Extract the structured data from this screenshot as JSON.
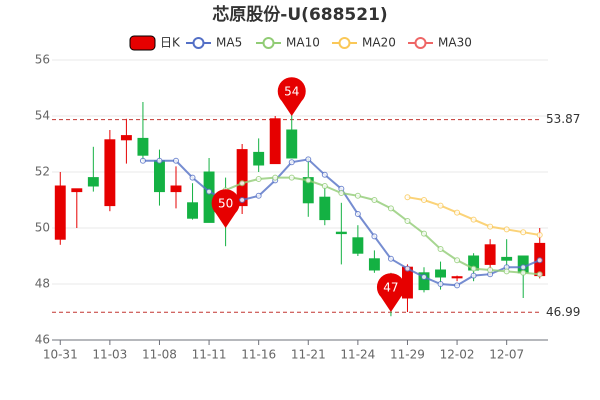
{
  "chart_data": {
    "type": "candlestick",
    "title": "芯原股份-U(688521)",
    "categories": [
      "10-31",
      null,
      null,
      "11-03",
      null,
      null,
      "11-08",
      null,
      null,
      "11-11",
      null,
      null,
      "11-16",
      null,
      null,
      "11-21",
      null,
      null,
      "11-24",
      null,
      null,
      "11-29",
      null,
      null,
      "12-02",
      null,
      null,
      "12-07",
      null,
      null
    ],
    "ylim": [
      46,
      56
    ],
    "yticks": [
      46,
      48,
      50,
      52,
      54,
      56
    ],
    "grid": true,
    "up_color": "#e60000",
    "down_color": "#14b143",
    "candles": {
      "name": "日K",
      "open": [
        49.6,
        51.3,
        51.8,
        50.8,
        53.15,
        53.2,
        52.4,
        51.3,
        50.9,
        52.0,
        50.5,
        50.8,
        52.7,
        52.3,
        53.5,
        51.8,
        51.1,
        49.85,
        49.65,
        48.9,
        48.3,
        47.5,
        48.4,
        48.5,
        48.22,
        49.0,
        48.7,
        48.95,
        49.0,
        48.3
      ],
      "close": [
        51.5,
        51.4,
        51.5,
        53.15,
        53.3,
        52.6,
        51.3,
        51.5,
        50.35,
        50.2,
        50.35,
        52.8,
        52.25,
        53.9,
        52.5,
        50.9,
        50.3,
        49.8,
        49.1,
        48.5,
        47.5,
        48.6,
        47.8,
        48.25,
        48.26,
        48.5,
        49.4,
        48.85,
        48.4,
        49.45
      ],
      "high": [
        52.0,
        51.4,
        52.9,
        53.5,
        53.9,
        54.5,
        52.8,
        52.2,
        51.6,
        52.5,
        51.8,
        53.0,
        53.2,
        54.0,
        54.6,
        52.5,
        51.5,
        50.9,
        50.1,
        49.2,
        48.4,
        48.7,
        48.6,
        48.8,
        48.3,
        49.1,
        49.6,
        49.6,
        49.0,
        50.0
      ],
      "low": [
        49.4,
        50.0,
        51.3,
        50.6,
        52.3,
        52.4,
        50.8,
        50.7,
        50.3,
        50.2,
        49.35,
        50.5,
        52.0,
        52.3,
        52.5,
        50.4,
        50.1,
        48.7,
        49.0,
        48.4,
        46.85,
        47.0,
        47.7,
        47.8,
        48.1,
        48.1,
        48.3,
        48.6,
        47.5,
        48.2
      ]
    },
    "series": [
      {
        "name": "MA5",
        "color": "#5470c6",
        "values": [
          null,
          null,
          null,
          null,
          null,
          52.4,
          52.4,
          52.4,
          51.8,
          51.3,
          51.0,
          51.0,
          51.15,
          51.7,
          52.35,
          52.45,
          51.9,
          51.4,
          50.5,
          49.7,
          48.9,
          48.55,
          48.25,
          48.0,
          47.95,
          48.3,
          48.35,
          48.6,
          48.6,
          48.85
        ]
      },
      {
        "name": "MA10",
        "color": "#91cc75",
        "values": [
          null,
          null,
          null,
          null,
          null,
          null,
          null,
          null,
          null,
          null,
          51.35,
          51.6,
          51.75,
          51.8,
          51.8,
          51.7,
          51.5,
          51.25,
          51.15,
          51.0,
          50.7,
          50.25,
          49.8,
          49.25,
          48.85,
          48.55,
          48.5,
          48.45,
          48.4,
          48.35
        ]
      },
      {
        "name": "MA20",
        "color": "#fac858",
        "values": [
          null,
          null,
          null,
          null,
          null,
          null,
          null,
          null,
          null,
          null,
          null,
          null,
          null,
          null,
          null,
          null,
          null,
          null,
          null,
          null,
          null,
          51.1,
          51.0,
          50.8,
          50.55,
          50.3,
          50.05,
          49.95,
          49.85,
          49.75
        ]
      },
      {
        "name": "MA30",
        "color": "#ee6666",
        "values": [
          null,
          null,
          null,
          null,
          null,
          null,
          null,
          null,
          null,
          null,
          null,
          null,
          null,
          null,
          null,
          null,
          null,
          null,
          null,
          null,
          null,
          null,
          null,
          null,
          null,
          null,
          null,
          null,
          null,
          null
        ]
      }
    ],
    "mark_lines": [
      53.87,
      46.99
    ],
    "mark_points": [
      {
        "category_index": 14,
        "value": 54
      },
      {
        "category_index": 10,
        "value": 50
      },
      {
        "category_index": 20,
        "value": 47
      }
    ]
  }
}
